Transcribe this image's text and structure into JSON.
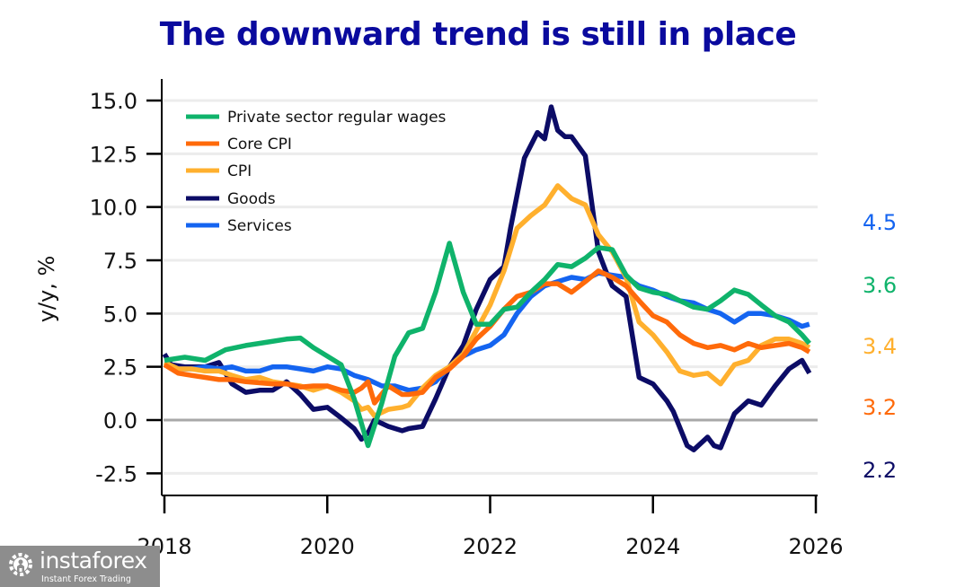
{
  "chart_data": {
    "type": "line",
    "title": "The downward trend is still in place",
    "xlabel": "",
    "ylabel": "y/y, %",
    "xlim": [
      2018,
      2026
    ],
    "ylim": [
      -3.5,
      16
    ],
    "yticks": [
      -2.5,
      0.0,
      2.5,
      5.0,
      7.5,
      10.0,
      12.5,
      15.0
    ],
    "ytick_labels": [
      "-2.5",
      "0.0",
      "2.5",
      "5.0",
      "7.5",
      "10.0",
      "12.5",
      "15.0"
    ],
    "xticks": [
      2018,
      2020,
      2022,
      2024,
      2026
    ],
    "xtick_labels": [
      "2018",
      "2020",
      "2022",
      "2024",
      "2026"
    ],
    "grid": "horizontal",
    "zero_line": true,
    "legend": "top-left",
    "series": [
      {
        "name": "Private sector regular wages",
        "color": "#0fb36b",
        "end_label": "3.6",
        "x": [
          2018.0,
          2018.25,
          2018.5,
          2018.75,
          2019.0,
          2019.25,
          2019.5,
          2019.67,
          2019.83,
          2020.0,
          2020.17,
          2020.33,
          2020.5,
          2020.67,
          2020.83,
          2021.0,
          2021.17,
          2021.33,
          2021.5,
          2021.67,
          2021.83,
          2022.0,
          2022.17,
          2022.33,
          2022.5,
          2022.67,
          2022.83,
          2023.0,
          2023.17,
          2023.33,
          2023.5,
          2023.67,
          2023.83,
          2024.0,
          2024.17,
          2024.33,
          2024.5,
          2024.67,
          2024.83,
          2025.0,
          2025.17,
          2025.33,
          2025.5,
          2025.67,
          2025.83,
          2025.92
        ],
        "values": [
          2.8,
          2.95,
          2.8,
          3.3,
          3.5,
          3.65,
          3.8,
          3.85,
          3.4,
          3.0,
          2.6,
          1.0,
          -1.2,
          0.8,
          3.0,
          4.1,
          4.3,
          6.0,
          8.3,
          6.0,
          4.5,
          4.5,
          5.2,
          5.3,
          6.0,
          6.6,
          7.3,
          7.2,
          7.6,
          8.1,
          8.0,
          6.8,
          6.2,
          6.0,
          5.9,
          5.6,
          5.3,
          5.2,
          5.6,
          6.1,
          5.9,
          5.4,
          4.9,
          4.6,
          4.0,
          3.6
        ]
      },
      {
        "name": "Core CPI",
        "color": "#ff6a0a",
        "end_label": "3.2",
        "x": [
          2018.0,
          2018.17,
          2018.33,
          2018.5,
          2018.67,
          2018.83,
          2019.0,
          2019.17,
          2019.33,
          2019.5,
          2019.67,
          2019.83,
          2020.0,
          2020.17,
          2020.33,
          2020.42,
          2020.5,
          2020.58,
          2020.75,
          2020.92,
          2021.0,
          2021.17,
          2021.33,
          2021.5,
          2021.67,
          2021.83,
          2022.0,
          2022.17,
          2022.33,
          2022.5,
          2022.67,
          2022.83,
          2023.0,
          2023.17,
          2023.33,
          2023.5,
          2023.67,
          2023.83,
          2024.0,
          2024.17,
          2024.33,
          2024.5,
          2024.67,
          2024.83,
          2025.0,
          2025.17,
          2025.33,
          2025.5,
          2025.67,
          2025.83,
          2025.92
        ],
        "values": [
          2.6,
          2.2,
          2.1,
          2.0,
          1.9,
          1.9,
          1.8,
          1.75,
          1.7,
          1.7,
          1.55,
          1.6,
          1.6,
          1.4,
          1.3,
          1.5,
          1.8,
          0.8,
          1.6,
          1.2,
          1.2,
          1.3,
          2.0,
          2.4,
          3.0,
          3.8,
          4.4,
          5.2,
          5.8,
          6.0,
          6.4,
          6.4,
          6.0,
          6.5,
          7.0,
          6.7,
          6.3,
          5.6,
          4.9,
          4.6,
          4.0,
          3.6,
          3.4,
          3.5,
          3.3,
          3.6,
          3.4,
          3.5,
          3.6,
          3.4,
          3.2
        ]
      },
      {
        "name": "CPI",
        "color": "#ffb02e",
        "end_label": "3.4",
        "x": [
          2018.0,
          2018.17,
          2018.33,
          2018.5,
          2018.67,
          2018.83,
          2019.0,
          2019.17,
          2019.33,
          2019.5,
          2019.67,
          2019.83,
          2020.0,
          2020.17,
          2020.33,
          2020.42,
          2020.5,
          2020.58,
          2020.75,
          2020.92,
          2021.0,
          2021.17,
          2021.33,
          2021.5,
          2021.67,
          2021.83,
          2022.0,
          2022.17,
          2022.33,
          2022.5,
          2022.67,
          2022.83,
          2023.0,
          2023.17,
          2023.33,
          2023.5,
          2023.67,
          2023.83,
          2024.0,
          2024.17,
          2024.33,
          2024.5,
          2024.67,
          2024.83,
          2025.0,
          2025.17,
          2025.33,
          2025.5,
          2025.67,
          2025.83,
          2025.92
        ],
        "values": [
          2.7,
          2.4,
          2.4,
          2.3,
          2.3,
          2.1,
          1.9,
          2.0,
          1.8,
          1.7,
          1.6,
          1.4,
          1.6,
          1.3,
          0.9,
          0.5,
          0.6,
          0.2,
          0.5,
          0.6,
          0.7,
          1.5,
          2.1,
          2.5,
          3.1,
          4.2,
          5.4,
          7.0,
          9.0,
          9.6,
          10.1,
          11.0,
          10.4,
          10.1,
          8.7,
          7.9,
          6.7,
          4.6,
          4.0,
          3.2,
          2.3,
          2.1,
          2.2,
          1.7,
          2.6,
          2.8,
          3.5,
          3.8,
          3.8,
          3.6,
          3.4
        ]
      },
      {
        "name": "Goods",
        "color": "#0c0c66",
        "end_label": "2.2",
        "x": [
          2018.0,
          2018.08,
          2018.25,
          2018.5,
          2018.67,
          2018.83,
          2019.0,
          2019.17,
          2019.33,
          2019.5,
          2019.67,
          2019.83,
          2020.0,
          2020.17,
          2020.33,
          2020.42,
          2020.5,
          2020.58,
          2020.75,
          2020.92,
          2021.0,
          2021.17,
          2021.33,
          2021.5,
          2021.67,
          2021.83,
          2022.0,
          2022.17,
          2022.25,
          2022.42,
          2022.58,
          2022.67,
          2022.75,
          2022.83,
          2022.92,
          2023.0,
          2023.17,
          2023.33,
          2023.42,
          2023.5,
          2023.67,
          2023.83,
          2024.0,
          2024.17,
          2024.25,
          2024.42,
          2024.5,
          2024.67,
          2024.75,
          2024.83,
          2025.0,
          2025.17,
          2025.33,
          2025.5,
          2025.67,
          2025.83,
          2025.92
        ],
        "values": [
          3.1,
          2.6,
          2.5,
          2.5,
          2.7,
          1.7,
          1.3,
          1.4,
          1.4,
          1.8,
          1.2,
          0.5,
          0.6,
          0.1,
          -0.4,
          -0.9,
          -0.6,
          0.0,
          -0.3,
          -0.5,
          -0.4,
          -0.3,
          1.0,
          2.5,
          3.5,
          5.2,
          6.6,
          7.2,
          9.0,
          12.3,
          13.5,
          13.2,
          14.7,
          13.6,
          13.3,
          13.3,
          12.4,
          7.9,
          7.0,
          6.3,
          5.8,
          2.0,
          1.7,
          0.9,
          0.4,
          -1.2,
          -1.4,
          -0.8,
          -1.2,
          -1.3,
          0.3,
          0.9,
          0.7,
          1.6,
          2.4,
          2.8,
          2.2
        ]
      },
      {
        "name": "Services",
        "color": "#1464f0",
        "end_label": "4.5",
        "x": [
          2018.0,
          2018.17,
          2018.33,
          2018.5,
          2018.67,
          2018.83,
          2019.0,
          2019.17,
          2019.33,
          2019.5,
          2019.67,
          2019.83,
          2020.0,
          2020.17,
          2020.33,
          2020.5,
          2020.67,
          2020.83,
          2021.0,
          2021.17,
          2021.33,
          2021.5,
          2021.67,
          2021.83,
          2022.0,
          2022.17,
          2022.33,
          2022.5,
          2022.67,
          2022.83,
          2023.0,
          2023.17,
          2023.33,
          2023.5,
          2023.67,
          2023.83,
          2024.0,
          2024.17,
          2024.33,
          2024.5,
          2024.67,
          2024.83,
          2025.0,
          2025.17,
          2025.33,
          2025.5,
          2025.67,
          2025.83,
          2025.92
        ],
        "values": [
          2.6,
          2.4,
          2.4,
          2.5,
          2.4,
          2.5,
          2.3,
          2.3,
          2.5,
          2.5,
          2.4,
          2.3,
          2.5,
          2.4,
          2.1,
          1.9,
          1.6,
          1.6,
          1.4,
          1.5,
          1.8,
          2.5,
          3.0,
          3.3,
          3.5,
          4.0,
          5.0,
          5.8,
          6.3,
          6.5,
          6.7,
          6.6,
          6.9,
          6.8,
          6.7,
          6.3,
          6.1,
          5.8,
          5.6,
          5.5,
          5.2,
          5.0,
          4.6,
          5.0,
          5.0,
          4.9,
          4.7,
          4.4,
          4.5
        ]
      }
    ]
  },
  "logo": {
    "brand": "instaforex",
    "tagline": "Instant Forex Trading"
  }
}
